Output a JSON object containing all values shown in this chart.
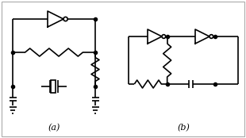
{
  "bg_color": "#ffffff",
  "line_color": "#000000",
  "line_width": 1.2,
  "dot_size": 3,
  "label_a": "(a)",
  "label_b": "(b)",
  "fig_width": 3.1,
  "fig_height": 1.74
}
